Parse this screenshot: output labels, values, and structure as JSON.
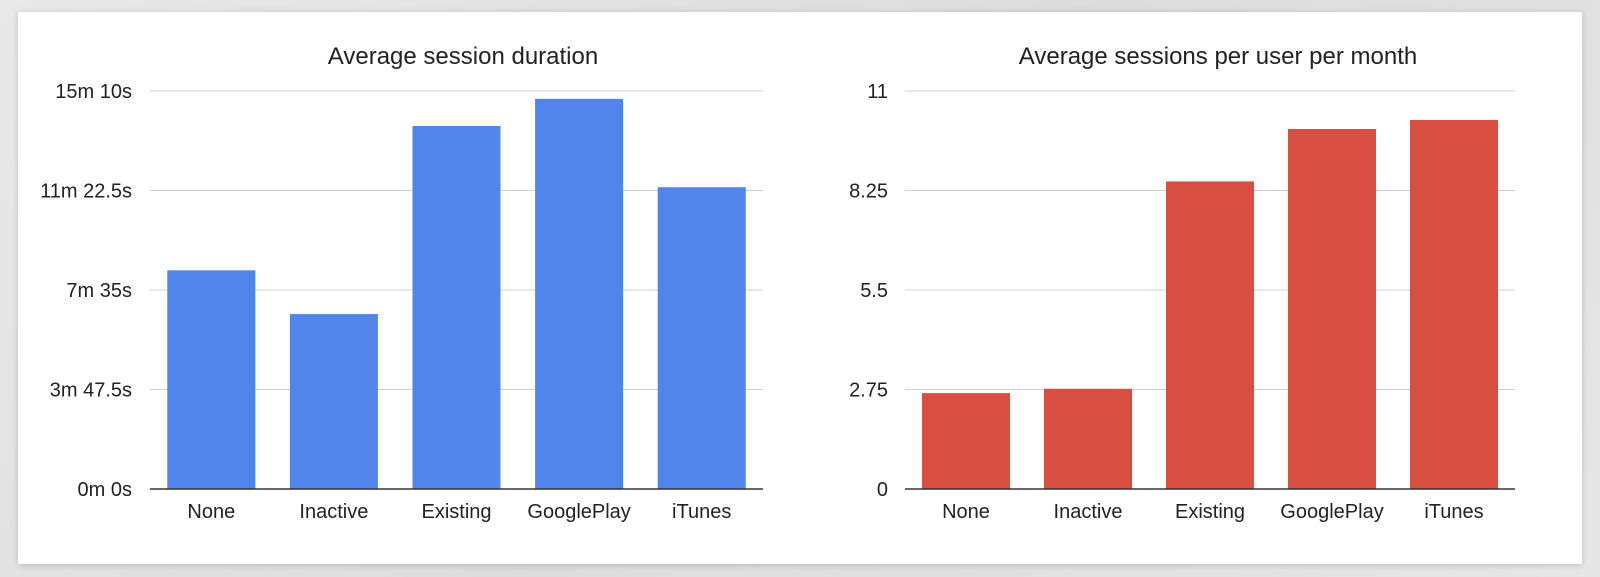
{
  "colors": {
    "left_bar": "#5285EB",
    "right_bar": "#D84E40",
    "grid": "#d0d0d0"
  },
  "chart_data": [
    {
      "type": "bar",
      "title": "Average session duration",
      "categories": [
        "None",
        "Inactive",
        "Existing",
        "GooglePlay",
        "iTunes"
      ],
      "values": [
        500,
        400,
        830,
        892,
        690
      ],
      "y_tick_values": [
        0,
        227.5,
        455,
        682.5,
        910
      ],
      "y_tick_labels": [
        "0m 0s",
        "3m 47.5s",
        "7m 35s",
        "11m 22.5s",
        "15m 10s"
      ],
      "ylim": [
        0,
        910
      ],
      "unit": "seconds",
      "grid": true,
      "legend": "none",
      "color": "#5285EB"
    },
    {
      "type": "bar",
      "title": "Average sessions per user per month",
      "categories": [
        "None",
        "Inactive",
        "Existing",
        "GooglePlay",
        "iTunes"
      ],
      "values": [
        2.65,
        2.77,
        8.5,
        9.95,
        10.2
      ],
      "y_tick_values": [
        0,
        2.75,
        5.5,
        8.25,
        11
      ],
      "y_tick_labels": [
        "0",
        "2.75",
        "5.5",
        "8.25",
        "11"
      ],
      "ylim": [
        0,
        11
      ],
      "grid": true,
      "legend": "none",
      "color": "#D84E40"
    }
  ]
}
